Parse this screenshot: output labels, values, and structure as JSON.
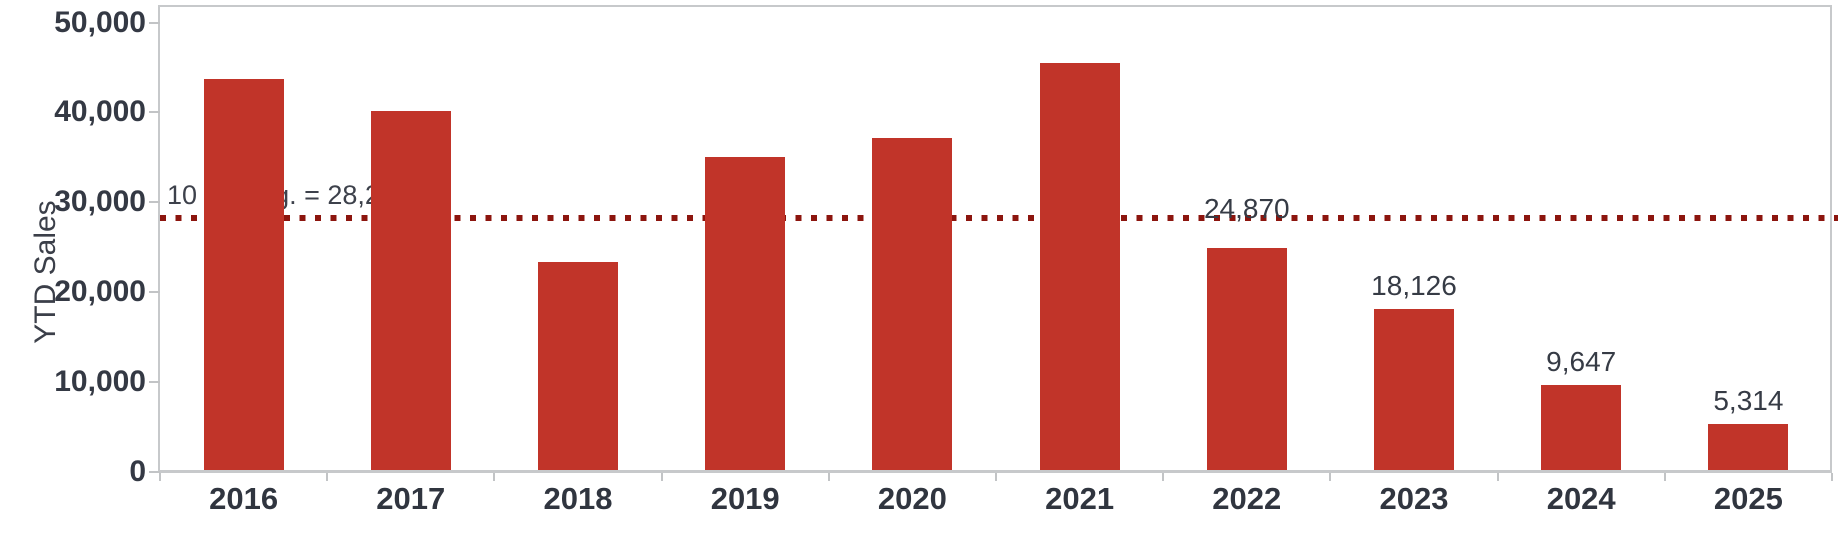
{
  "chart": {
    "y_axis": {
      "title": "YTD Sales",
      "ticks": [
        {
          "value": 0,
          "label": "0"
        },
        {
          "value": 10000,
          "label": "10,000"
        },
        {
          "value": 20000,
          "label": "20,000"
        },
        {
          "value": 30000,
          "label": "30,000"
        },
        {
          "value": 40000,
          "label": "40,000"
        },
        {
          "value": 50000,
          "label": "50,000"
        }
      ]
    },
    "reference_line": {
      "label": "10 Yr. Avg. = 28,286",
      "value": 28286
    },
    "colors": {
      "bar": "#c13429",
      "reference_line": "#8c150e",
      "axis_line": "#c7c9cb",
      "tick_text": "#343944",
      "year_text": "#30353f",
      "data_label_text": "#363b45",
      "reference_label_text": "#3d414b",
      "reference_label_bg": "rgba(255,255,255,0.72)"
    }
  },
  "chart_data": {
    "type": "bar",
    "title": "",
    "xlabel": "",
    "ylabel": "YTD Sales",
    "categories": [
      "2016",
      "2017",
      "2018",
      "2019",
      "2020",
      "2021",
      "2022",
      "2023",
      "2024",
      "2025"
    ],
    "values": [
      43700,
      40150,
      23350,
      35000,
      37150,
      45553,
      24870,
      18126,
      9647,
      5314
    ],
    "bar_labels": [
      "",
      "",
      "",
      "",
      "",
      "",
      "24,870",
      "18,126",
      "9,647",
      "5,314"
    ],
    "ylim": [
      0,
      50000
    ],
    "grid": false,
    "legend": "none",
    "reference_line": {
      "value": 28286,
      "label": "10 Yr. Avg. = 28,286"
    }
  }
}
